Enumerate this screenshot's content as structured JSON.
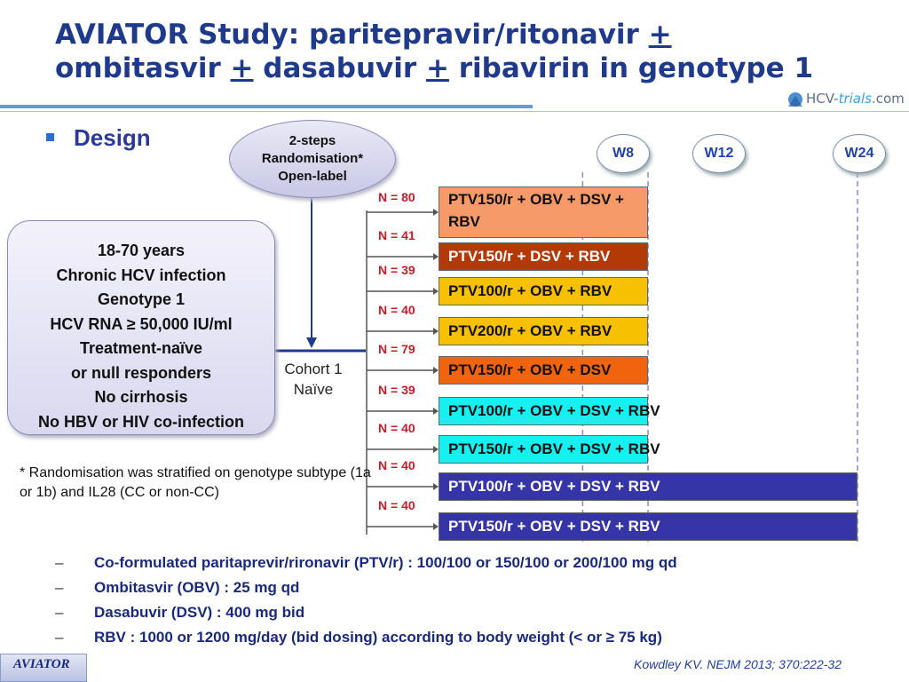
{
  "title": {
    "line1_a": "AVIATOR Study: paritepravir/ritonavir ",
    "plus1": "+",
    "line2_a": "ombitasvir ",
    "plus2": "+",
    "line2_b": " dasabuvir ",
    "plus3": "+",
    "line2_c": " ribavirin in genotype 1"
  },
  "logo": {
    "part1": "HCV-",
    "part2": "trials",
    "part3": ".com"
  },
  "section": "Design",
  "randomisation": [
    "2-steps",
    "Randomisation*",
    "Open-label"
  ],
  "population": [
    "18-70 years",
    "Chronic HCV infection",
    "Genotype 1",
    "HCV RNA ≥ 50,000 IU/ml",
    "Treatment-naïve",
    "or null responders",
    "No cirrhosis",
    "No HBV or HIV co-infection"
  ],
  "cohort": [
    "Cohort 1",
    "Naïve"
  ],
  "footnote": "* Randomisation was stratified on genotype subtype (1a or 1b) and IL28 (CC or non-CC)",
  "weeks": [
    "W8",
    "W12",
    "W24"
  ],
  "colors": {
    "arm_salmon": "#f79a6a",
    "arm_brown": "#b33a06",
    "arm_gold": "#f7c000",
    "arm_orange": "#f2640c",
    "arm_cyan": "#17f0f0",
    "arm_navy": "#3535a8",
    "title": "#1f3a8a",
    "n_label": "#c0202a"
  },
  "arms": [
    {
      "n": "N = 80",
      "label": "PTV150/r + OBV + DSV  + RBV",
      "duration_weeks": 12,
      "color": "#f79a6a",
      "text_color": "#111111"
    },
    {
      "n": "N = 41",
      "label": "PTV150/r + DSV + RBV",
      "duration_weeks": 12,
      "color": "#b33a06",
      "text_color": "#ffffff"
    },
    {
      "n": "N = 39",
      "label": "PTV100/r + OBV + RBV",
      "duration_weeks": 12,
      "color": "#f7c000",
      "text_color": "#111111"
    },
    {
      "n": "N = 40",
      "label": "PTV200/r + OBV + RBV",
      "duration_weeks": 12,
      "color": "#f7c000",
      "text_color": "#111111"
    },
    {
      "n": "N = 79",
      "label": "PTV150/r + OBV + DSV",
      "duration_weeks": 12,
      "color": "#f2640c",
      "text_color": "#111111"
    },
    {
      "n": "N = 39",
      "label": "PTV100/r + OBV + DSV + RBV",
      "duration_weeks": 12,
      "color": "#17f0f0",
      "text_color": "#111111"
    },
    {
      "n": "N = 40",
      "label": "PTV150/r + OBV + DSV + RBV",
      "duration_weeks": 12,
      "color": "#17f0f0",
      "text_color": "#111111"
    },
    {
      "n": "N = 40",
      "label": "PTV100/r + OBV + DSV + RBV",
      "duration_weeks": 24,
      "color": "#3535a8",
      "text_color": "#ffffff"
    },
    {
      "n": "N = 40",
      "label": "PTV150/r + OBV + DSV + RBV",
      "duration_weeks": 24,
      "color": "#3535a8",
      "text_color": "#ffffff"
    }
  ],
  "bullets": [
    "Co-formulated paritaprevir/rironavir (PTV/r) : 100/100 or 150/100 or 200/100 mg qd",
    "Ombitasvir (OBV) : 25 mg qd",
    "Dasabuvir (DSV) : 400 mg bid",
    "RBV : 1000 or 1200 mg/day (bid dosing) according to body weight (< or ≥ 75 kg)"
  ],
  "bullet_marker": "–",
  "badge": "AVIATOR",
  "reference": "Kowdley KV. NEJM 2013; 370:222-32"
}
